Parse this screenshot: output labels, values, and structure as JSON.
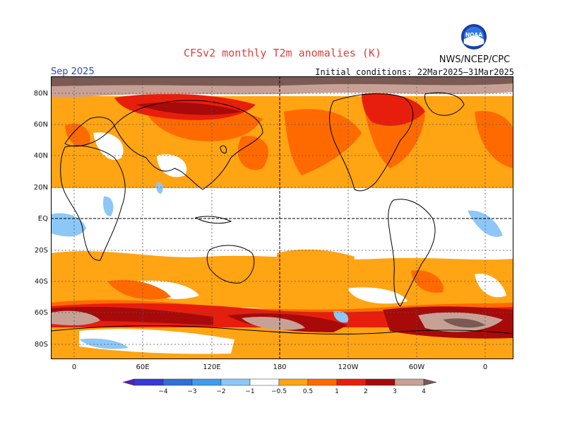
{
  "title": "CFSv2 monthly T2m anomalies (K)",
  "valid_month": "Sep 2025",
  "initial_conditions": "Initial conditions: 22Mar2025–31Mar2025",
  "agency": "NWS/NCEP/CPC",
  "logo_text": "NOAA",
  "logo_icon": "noaa-logo-icon",
  "lat_labels": [
    "80N",
    "60N",
    "40N",
    "20N",
    "EQ",
    "20S",
    "40S",
    "60S",
    "80S"
  ],
  "lon_labels": [
    "0",
    "60E",
    "120E",
    "180",
    "120W",
    "60W",
    "0"
  ],
  "legend": {
    "ticks": [
      "−4",
      "−3",
      "−2",
      "−1",
      "−0.5",
      "0.5",
      "1",
      "2",
      "3",
      "4"
    ],
    "colors": {
      "lt_-4": "#5a1fb4",
      "-4_-3": "#3838d6",
      "-3_-2": "#2f6fd6",
      "-2_-1": "#3f9bef",
      "-1_-0.5": "#8cc7f7",
      "-0.5_0.5": "#ffffff",
      "0.5_1": "#ffa412",
      "1_2": "#ff6a00",
      "2_3": "#e81e0c",
      "3_4": "#a80a0a",
      "4_5": "#c8a196",
      "gt_5": "#7a5a52"
    }
  }
}
